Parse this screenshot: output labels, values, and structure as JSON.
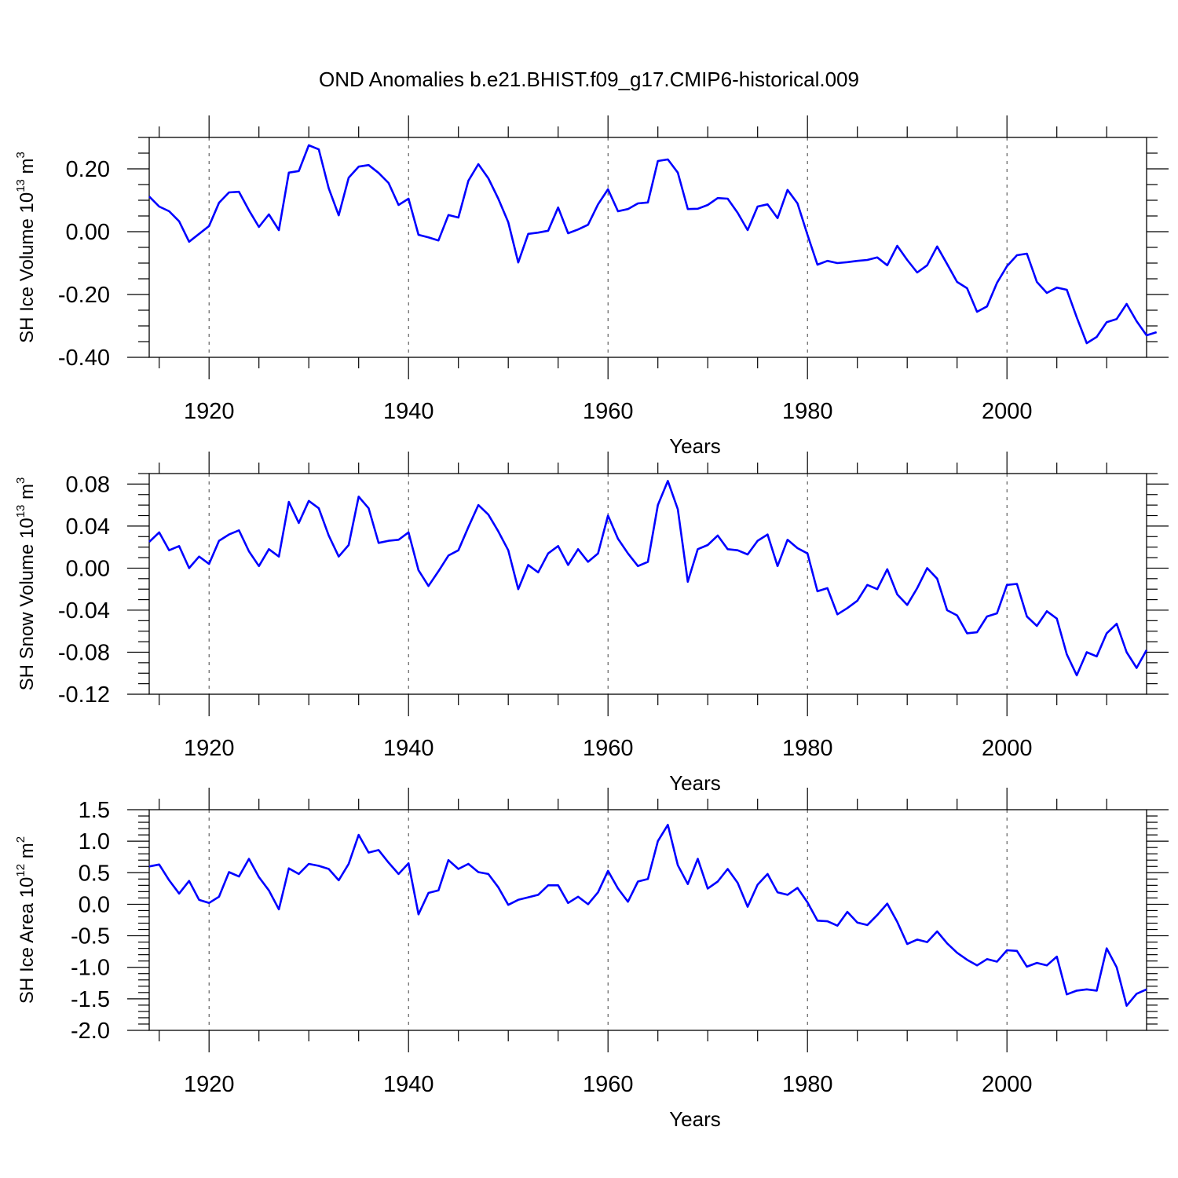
{
  "title": "OND Anomalies b.e21.BHIST.f09_g17.CMIP6-historical.009",
  "chart_data": [
    {
      "type": "line",
      "id": "ice-volume",
      "ylabel_main": "SH Ice Volume 10",
      "ylabel_exp": "13",
      "ylabel_unit": " m",
      "ylabel_unit_exp": "3",
      "xlabel": "Years",
      "xlim": [
        1914,
        2014
      ],
      "ylim": [
        -0.4,
        0.3
      ],
      "yticks": [
        -0.4,
        -0.2,
        0.0,
        0.2
      ],
      "ytick_labels": [
        "-0.40",
        "-0.20",
        "0.00",
        "0.20"
      ],
      "yminor": [
        -0.35,
        -0.3,
        -0.25,
        -0.15,
        -0.1,
        -0.05,
        0.05,
        0.1,
        0.15,
        0.25,
        0.3
      ],
      "xticks": [
        1920,
        1940,
        1960,
        1980,
        2000
      ],
      "xtick_labels": [
        "1920",
        "1940",
        "1960",
        "1980",
        "2000"
      ],
      "series": [
        {
          "name": "SH Ice Volume",
          "color": "#0000ff",
          "x_start": 1914,
          "values": [
            0.112,
            0.08,
            0.065,
            0.033,
            -0.032,
            -0.007,
            0.018,
            0.092,
            0.125,
            0.127,
            0.068,
            0.015,
            0.055,
            0.005,
            0.188,
            0.193,
            0.275,
            0.262,
            0.138,
            0.052,
            0.172,
            0.207,
            0.212,
            0.187,
            0.155,
            0.085,
            0.105,
            -0.01,
            -0.018,
            -0.028,
            0.053,
            0.045,
            0.162,
            0.215,
            0.17,
            0.105,
            0.03,
            -0.098,
            -0.007,
            -0.003,
            0.003,
            0.077,
            -0.005,
            0.007,
            0.022,
            0.087,
            0.135,
            0.065,
            0.072,
            0.09,
            0.093,
            0.225,
            0.23,
            0.188,
            0.072,
            0.073,
            0.085,
            0.107,
            0.105,
            0.06,
            0.005,
            0.08,
            0.087,
            0.043,
            0.133,
            0.09,
            -0.01,
            -0.105,
            -0.093,
            -0.1,
            -0.097,
            -0.093,
            -0.09,
            -0.082,
            -0.107,
            -0.045,
            -0.09,
            -0.13,
            -0.107,
            -0.047,
            -0.103,
            -0.16,
            -0.18,
            -0.255,
            -0.238,
            -0.163,
            -0.11,
            -0.075,
            -0.07,
            -0.16,
            -0.195,
            -0.178,
            -0.185,
            -0.273,
            -0.355,
            -0.335,
            -0.288,
            -0.278,
            -0.23,
            -0.285,
            -0.33,
            -0.32
          ]
        }
      ]
    },
    {
      "type": "line",
      "id": "snow-volume",
      "ylabel_main": "SH Snow Volume 10",
      "ylabel_exp": "13",
      "ylabel_unit": " m",
      "ylabel_unit_exp": "3",
      "xlabel": "Years",
      "xlim": [
        1914,
        2014
      ],
      "ylim": [
        -0.12,
        0.09
      ],
      "yticks": [
        -0.12,
        -0.08,
        -0.04,
        0.0,
        0.04,
        0.08
      ],
      "ytick_labels": [
        "-0.12",
        "-0.08",
        "-0.04",
        "0.00",
        "0.04",
        "0.08"
      ],
      "yminor": [
        -0.11,
        -0.1,
        -0.09,
        -0.07,
        -0.06,
        -0.05,
        -0.03,
        -0.02,
        -0.01,
        0.01,
        0.02,
        0.03,
        0.05,
        0.06,
        0.07,
        0.09
      ],
      "xticks": [
        1920,
        1940,
        1960,
        1980,
        2000
      ],
      "xtick_labels": [
        "1920",
        "1940",
        "1960",
        "1980",
        "2000"
      ],
      "series": [
        {
          "name": "SH Snow Volume",
          "color": "#0000ff",
          "x_start": 1914,
          "values": [
            0.025,
            0.034,
            0.017,
            0.021,
            0.0,
            0.011,
            0.004,
            0.026,
            0.032,
            0.036,
            0.016,
            0.002,
            0.018,
            0.011,
            0.063,
            0.043,
            0.064,
            0.057,
            0.031,
            0.011,
            0.022,
            0.068,
            0.057,
            0.024,
            0.026,
            0.027,
            0.034,
            -0.002,
            -0.017,
            -0.003,
            0.012,
            0.017,
            0.039,
            0.06,
            0.051,
            0.035,
            0.017,
            -0.02,
            0.003,
            -0.004,
            0.014,
            0.021,
            0.003,
            0.018,
            0.006,
            0.014,
            0.05,
            0.028,
            0.014,
            0.002,
            0.006,
            0.06,
            0.083,
            0.056,
            -0.013,
            0.018,
            0.022,
            0.031,
            0.018,
            0.017,
            0.013,
            0.026,
            0.032,
            0.002,
            0.027,
            0.019,
            0.014,
            -0.022,
            -0.019,
            -0.044,
            -0.038,
            -0.031,
            -0.016,
            -0.02,
            -0.001,
            -0.025,
            -0.035,
            -0.019,
            0.0,
            -0.01,
            -0.04,
            -0.045,
            -0.062,
            -0.061,
            -0.046,
            -0.043,
            -0.016,
            -0.015,
            -0.046,
            -0.055,
            -0.041,
            -0.048,
            -0.082,
            -0.102,
            -0.08,
            -0.084,
            -0.062,
            -0.053,
            -0.08,
            -0.095,
            -0.078
          ]
        }
      ]
    },
    {
      "type": "line",
      "id": "ice-area",
      "ylabel_main": "SH Ice Area 10",
      "ylabel_exp": "12",
      "ylabel_unit": " m",
      "ylabel_unit_exp": "2",
      "xlabel": "Years",
      "xlim": [
        1914,
        2014
      ],
      "ylim": [
        -2.0,
        1.5
      ],
      "yticks": [
        -2.0,
        -1.5,
        -1.0,
        -0.5,
        0.0,
        0.5,
        1.0,
        1.5
      ],
      "ytick_labels": [
        "-2.0",
        "-1.5",
        "-1.0",
        "-0.5",
        "0.0",
        "0.5",
        "1.0",
        "1.5"
      ],
      "yminor": [
        -1.9,
        -1.8,
        -1.7,
        -1.6,
        -1.4,
        -1.3,
        -1.2,
        -1.1,
        -0.9,
        -0.8,
        -0.7,
        -0.6,
        -0.4,
        -0.3,
        -0.2,
        -0.1,
        0.1,
        0.2,
        0.3,
        0.4,
        0.6,
        0.7,
        0.8,
        0.9,
        1.1,
        1.2,
        1.3,
        1.4
      ],
      "xticks": [
        1920,
        1940,
        1960,
        1980,
        2000
      ],
      "xtick_labels": [
        "1920",
        "1940",
        "1960",
        "1980",
        "2000"
      ],
      "series": [
        {
          "name": "SH Ice Area",
          "color": "#0000ff",
          "x_start": 1914,
          "values": [
            0.6,
            0.63,
            0.38,
            0.17,
            0.37,
            0.07,
            0.02,
            0.12,
            0.51,
            0.44,
            0.72,
            0.43,
            0.22,
            -0.08,
            0.57,
            0.48,
            0.64,
            0.61,
            0.56,
            0.38,
            0.64,
            1.1,
            0.82,
            0.86,
            0.66,
            0.48,
            0.65,
            -0.16,
            0.18,
            0.22,
            0.7,
            0.56,
            0.64,
            0.51,
            0.48,
            0.27,
            -0.01,
            0.07,
            0.11,
            0.15,
            0.3,
            0.3,
            0.02,
            0.12,
            0.0,
            0.19,
            0.53,
            0.25,
            0.04,
            0.36,
            0.4,
            1.0,
            1.26,
            0.62,
            0.32,
            0.72,
            0.25,
            0.36,
            0.56,
            0.34,
            -0.04,
            0.31,
            0.48,
            0.19,
            0.15,
            0.26,
            0.03,
            -0.26,
            -0.27,
            -0.34,
            -0.12,
            -0.29,
            -0.33,
            -0.17,
            0.01,
            -0.28,
            -0.63,
            -0.56,
            -0.6,
            -0.43,
            -0.62,
            -0.77,
            -0.88,
            -0.97,
            -0.87,
            -0.91,
            -0.73,
            -0.74,
            -0.99,
            -0.93,
            -0.97,
            -0.83,
            -1.43,
            -1.37,
            -1.35,
            -1.37,
            -0.7,
            -1.0,
            -1.61,
            -1.42,
            -1.35
          ]
        }
      ]
    }
  ]
}
